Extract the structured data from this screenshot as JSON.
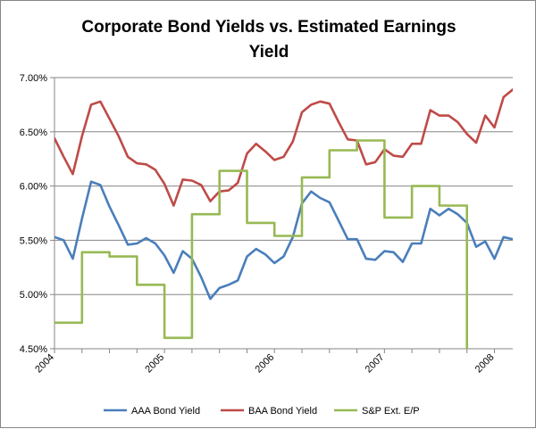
{
  "chart_data": {
    "type": "line",
    "title_lines": [
      "Corporate Bond Yields vs. Estimated Earnings",
      "Yield"
    ],
    "ylim": [
      4.5,
      7.0
    ],
    "y_ticks": [
      {
        "value": 4.5,
        "label": "4.50%"
      },
      {
        "value": 5.0,
        "label": "5.00%"
      },
      {
        "value": 5.5,
        "label": "5.50%"
      },
      {
        "value": 6.0,
        "label": "6.00%"
      },
      {
        "value": 6.5,
        "label": "6.50%"
      },
      {
        "value": 7.0,
        "label": "7.00%"
      }
    ],
    "x_ticks": [
      "2004",
      "2005",
      "2006",
      "2007",
      "2008"
    ],
    "x_start_index": 0,
    "x_end_index": 50,
    "points_per_year": 12,
    "grid": "horizontal",
    "legend_position": "bottom",
    "series": [
      {
        "name": "AAA Bond Yield",
        "color": "#4a7ebb",
        "values": [
          5.53,
          5.5,
          5.33,
          5.7,
          6.04,
          6.01,
          5.81,
          5.64,
          5.46,
          5.47,
          5.52,
          5.47,
          5.36,
          5.2,
          5.4,
          5.33,
          5.16,
          4.96,
          5.06,
          5.09,
          5.13,
          5.35,
          5.42,
          5.37,
          5.29,
          5.35,
          5.53,
          5.84,
          5.95,
          5.89,
          5.85,
          5.68,
          5.51,
          5.51,
          5.33,
          5.32,
          5.4,
          5.39,
          5.3,
          5.47,
          5.47,
          5.79,
          5.73,
          5.79,
          5.74,
          5.66,
          5.44,
          5.49,
          5.33,
          5.53,
          5.51
        ]
      },
      {
        "name": "BAA Bond Yield",
        "color": "#be4b48",
        "values": [
          6.44,
          6.27,
          6.11,
          6.46,
          6.75,
          6.78,
          6.62,
          6.46,
          6.27,
          6.21,
          6.2,
          6.15,
          6.02,
          5.82,
          6.06,
          6.05,
          6.01,
          5.86,
          5.95,
          5.96,
          6.03,
          6.3,
          6.39,
          6.32,
          6.24,
          6.27,
          6.41,
          6.68,
          6.75,
          6.78,
          6.76,
          6.59,
          6.43,
          6.42,
          6.2,
          6.22,
          6.34,
          6.28,
          6.27,
          6.39,
          6.39,
          6.7,
          6.65,
          6.65,
          6.59,
          6.48,
          6.4,
          6.65,
          6.54,
          6.82,
          6.89
        ]
      },
      {
        "name": "S&P Ext. E/P",
        "color": "#98b954",
        "step": true,
        "values": [
          4.74,
          4.74,
          4.74,
          5.39,
          5.39,
          5.39,
          5.35,
          5.35,
          5.35,
          5.09,
          5.09,
          5.09,
          4.6,
          4.6,
          4.6,
          5.74,
          5.74,
          5.74,
          6.14,
          6.14,
          6.14,
          5.66,
          5.66,
          5.66,
          5.54,
          5.54,
          5.54,
          6.08,
          6.08,
          6.08,
          6.33,
          6.33,
          6.33,
          6.42,
          6.42,
          6.42,
          5.71,
          5.71,
          5.71,
          6.0,
          6.0,
          6.0,
          5.82,
          5.82,
          5.82,
          4.3,
          null,
          null,
          null,
          null,
          null
        ]
      }
    ]
  }
}
